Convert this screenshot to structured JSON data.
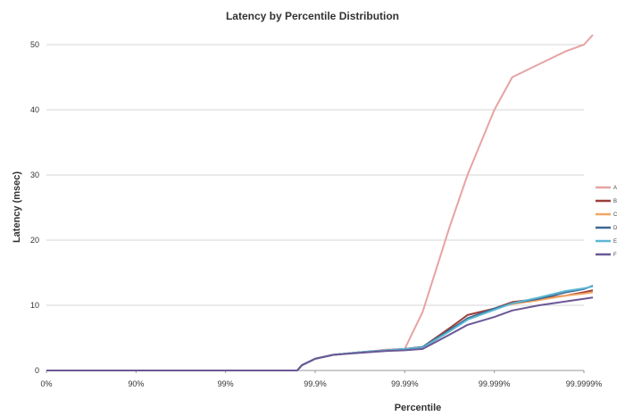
{
  "chart_data": {
    "type": "line",
    "title": "Latency by Percentile Distribution",
    "xlabel": "Percentile",
    "ylabel": "Latency (msec)",
    "x_scale": "log-percentile",
    "x_ticks": [
      "0%",
      "90%",
      "99%",
      "99.9%",
      "99.99%",
      "99.999%",
      "99.9999%"
    ],
    "x": [
      0,
      0.5,
      1,
      1.5,
      2,
      2.5,
      2.8,
      2.85,
      3,
      3.2,
      3.5,
      3.8,
      4,
      4.2,
      4.5,
      4.7,
      5,
      5.2,
      5.5,
      5.8,
      6,
      6.1
    ],
    "ylim": [
      0,
      50
    ],
    "y_ticks": [
      0,
      10,
      20,
      30,
      40,
      50
    ],
    "grid": true,
    "legend_position": "right",
    "series": [
      {
        "name": "A",
        "color": "#e7a3a3",
        "values": [
          0,
          0,
          0,
          0,
          0,
          0,
          0,
          0.8,
          1.8,
          2.4,
          2.8,
          3.2,
          3.3,
          9,
          22,
          30,
          40,
          45,
          47,
          49,
          50,
          51.5
        ]
      },
      {
        "name": "B",
        "color": "#9b3e3a",
        "values": [
          0,
          0,
          0,
          0,
          0,
          0,
          0,
          0.8,
          1.8,
          2.4,
          2.8,
          3.1,
          3.3,
          3.6,
          6.5,
          8.5,
          9.5,
          10.5,
          11,
          11.5,
          12,
          12.3
        ]
      },
      {
        "name": "C",
        "color": "#f2a662",
        "values": [
          0,
          0,
          0,
          0,
          0,
          0,
          0,
          0.8,
          1.8,
          2.4,
          2.8,
          3.1,
          3.3,
          3.5,
          6,
          8,
          9.5,
          10.2,
          10.8,
          11.5,
          11.8,
          12
        ]
      },
      {
        "name": "D",
        "color": "#3d6891",
        "values": [
          0,
          0,
          0,
          0,
          0,
          0,
          0,
          0.8,
          1.8,
          2.4,
          2.8,
          3.1,
          3.3,
          3.6,
          6.2,
          8,
          9.5,
          10.3,
          11,
          12,
          12.5,
          13
        ]
      },
      {
        "name": "E",
        "color": "#5bb7d3",
        "values": [
          0,
          0,
          0,
          0,
          0,
          0,
          0,
          0.8,
          1.8,
          2.4,
          2.8,
          3.1,
          3.3,
          3.5,
          6,
          7.8,
          9.3,
          10.3,
          11.2,
          12.2,
          12.6,
          12.9
        ]
      },
      {
        "name": "F",
        "color": "#6b5796",
        "values": [
          0,
          0,
          0,
          0,
          0,
          0,
          0,
          0.8,
          1.8,
          2.4,
          2.7,
          3,
          3.1,
          3.3,
          5.5,
          7,
          8.2,
          9.2,
          10,
          10.6,
          11,
          11.2
        ]
      }
    ]
  }
}
